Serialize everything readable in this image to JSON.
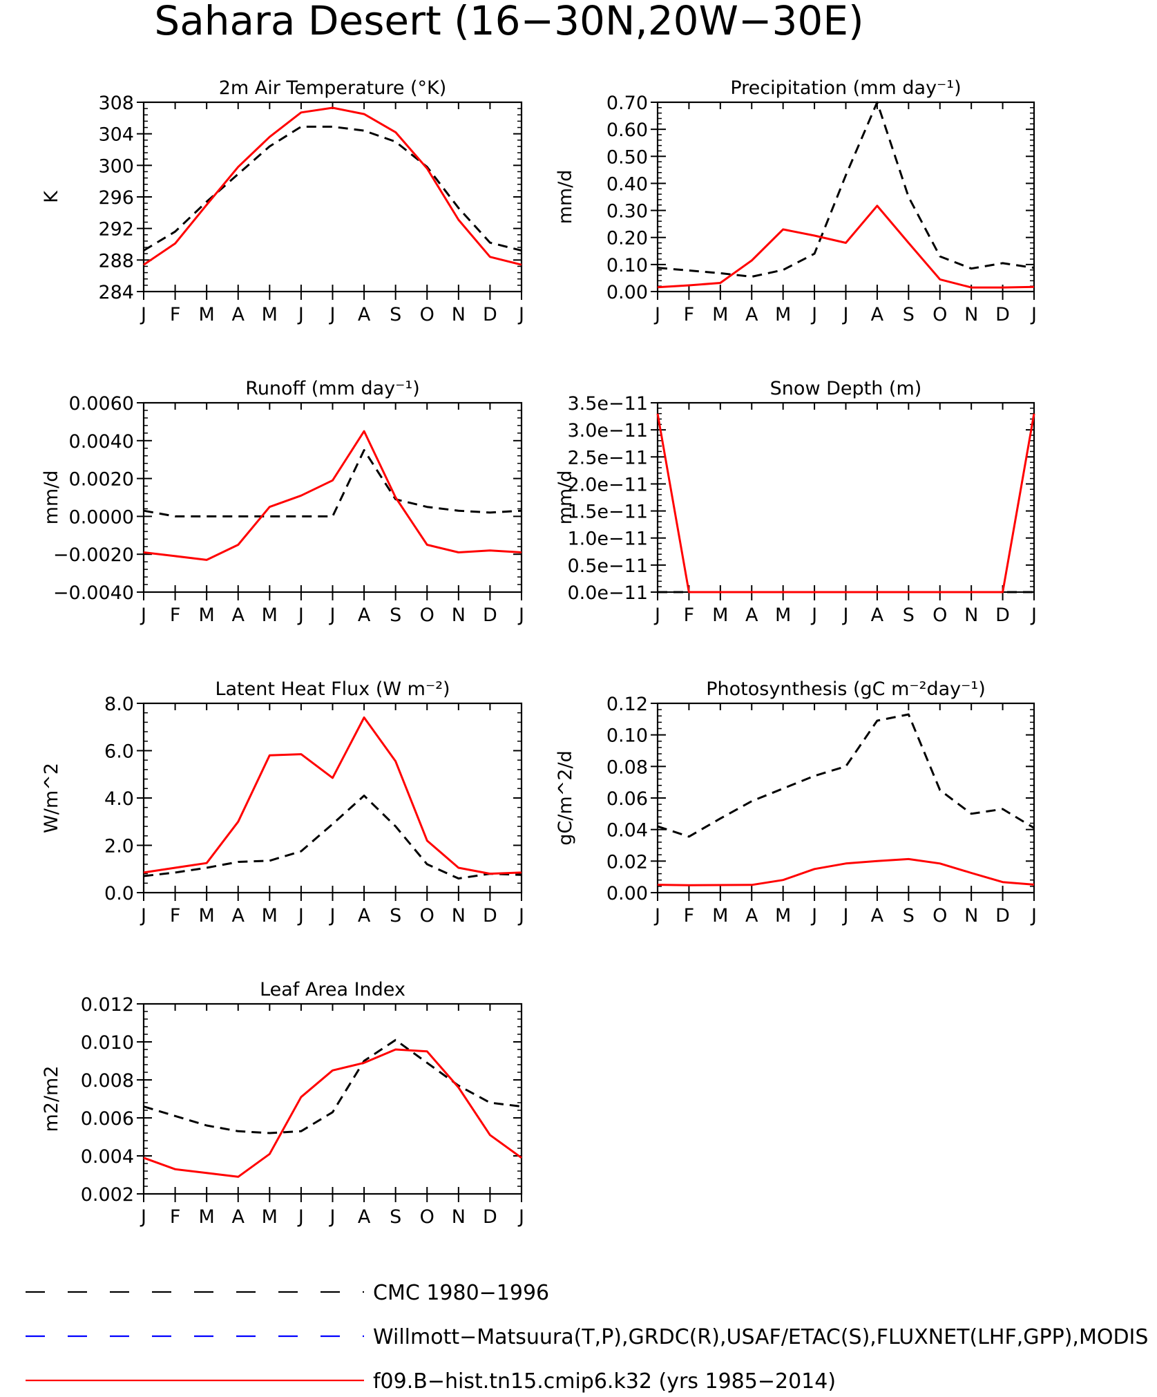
{
  "title": "Sahara Desert (16−30N,20W−30E)",
  "month_labels": [
    "J",
    "F",
    "M",
    "A",
    "M",
    "J",
    "J",
    "A",
    "S",
    "O",
    "N",
    "D",
    "J"
  ],
  "colors": {
    "obs": "#000000",
    "obs2": "#0000ff",
    "model": "#ff0000"
  },
  "legend": [
    {
      "label": "CMC 1980−1996",
      "color": "#000000",
      "style": "dashed"
    },
    {
      "label": "Willmott−Matsuura(T,P),GRDC(R),USAF/ETAC(S),FLUXNET(LHF,GPP),MODIS",
      "color": "#0000ff",
      "style": "dashed"
    },
    {
      "label": "f09.B−hist.tn15.cmip6.k32 (yrs 1985−2014)",
      "color": "#ff0000",
      "style": "solid"
    }
  ],
  "chart_data": [
    {
      "type": "line",
      "title": "2m Air Temperature (°K)",
      "ylabel": "K",
      "ylim": [
        284,
        308
      ],
      "yticks": [
        "284",
        "288",
        "292",
        "296",
        "300",
        "304",
        "308"
      ],
      "x": [
        "J",
        "F",
        "M",
        "A",
        "M",
        "J",
        "J",
        "A",
        "S",
        "O",
        "N",
        "D",
        "J"
      ],
      "series": [
        {
          "name": "CMC 1980−1996",
          "style": "dashed",
          "values": [
            289.2,
            291.6,
            295.4,
            298.9,
            302.4,
            304.9,
            304.9,
            304.4,
            303.0,
            299.8,
            294.6,
            290.2,
            289.2
          ]
        },
        {
          "name": "f09.B−hist.tn15.cmip6.k32 (yrs 1985−2014)",
          "style": "solid",
          "values": [
            287.4,
            290.1,
            295.0,
            299.8,
            303.6,
            306.7,
            307.3,
            306.5,
            304.2,
            299.6,
            293.1,
            288.4,
            287.4
          ]
        }
      ]
    },
    {
      "type": "line",
      "title": "Precipitation (mm day⁻¹)",
      "ylabel": "mm/d",
      "ylim": [
        0,
        0.7
      ],
      "yticks": [
        "0.00",
        "0.10",
        "0.20",
        "0.30",
        "0.40",
        "0.50",
        "0.60",
        "0.70"
      ],
      "x": [
        "J",
        "F",
        "M",
        "A",
        "M",
        "J",
        "J",
        "A",
        "S",
        "O",
        "N",
        "D",
        "J"
      ],
      "series": [
        {
          "name": "CMC 1980−1996",
          "style": "dashed",
          "values": [
            0.088,
            0.078,
            0.068,
            0.055,
            0.08,
            0.14,
            0.43,
            0.7,
            0.35,
            0.13,
            0.085,
            0.105,
            0.088
          ]
        },
        {
          "name": "f09.B−hist.tn15.cmip6.k32 (yrs 1985−2014)",
          "style": "solid",
          "values": [
            0.016,
            0.023,
            0.032,
            0.115,
            0.23,
            0.207,
            0.18,
            0.317,
            0.18,
            0.045,
            0.015,
            0.015,
            0.017
          ]
        }
      ]
    },
    {
      "type": "line",
      "title": "Runoff (mm day⁻¹)",
      "ylabel": "mm/d",
      "ylim": [
        -0.004,
        0.006
      ],
      "yticks": [
        "−0.0040",
        "−0.0020",
        "0.0000",
        "0.0020",
        "0.0040",
        "0.0060"
      ],
      "x": [
        "J",
        "F",
        "M",
        "A",
        "M",
        "J",
        "J",
        "A",
        "S",
        "O",
        "N",
        "D",
        "J"
      ],
      "series": [
        {
          "name": "CMC 1980−1996",
          "style": "dashed",
          "values": [
            0.0003,
            0.0,
            0.0,
            0.0,
            0.0,
            0.0,
            0.0,
            0.0035,
            0.0009,
            0.0005,
            0.0003,
            0.0002,
            0.0003
          ]
        },
        {
          "name": "f09.B−hist.tn15.cmip6.k32 (yrs 1985−2014)",
          "style": "solid",
          "values": [
            -0.0019,
            -0.0021,
            -0.0023,
            -0.0015,
            0.0005,
            0.0011,
            0.0019,
            0.0045,
            0.001,
            -0.0015,
            -0.0019,
            -0.0018,
            -0.0019
          ]
        }
      ]
    },
    {
      "type": "line",
      "title": "Snow Depth (m)",
      "ylabel": "mm/d",
      "ylim": [
        0,
        3.5e-11
      ],
      "yticks": [
        "0.0e−11",
        "0.5e−11",
        "1.0e−11",
        "1.5e−11",
        "2.0e−11",
        "2.5e−11",
        "3.0e−11",
        "3.5e−11"
      ],
      "x": [
        "J",
        "F",
        "M",
        "A",
        "M",
        "J",
        "J",
        "A",
        "S",
        "O",
        "N",
        "D",
        "J"
      ],
      "series": [
        {
          "name": "CMC 1980−1996",
          "style": "dashed",
          "values": [
            0,
            0,
            0,
            0,
            0,
            0,
            0,
            0,
            0,
            0,
            0,
            0,
            0
          ]
        },
        {
          "name": "f09.B−hist.tn15.cmip6.k32 (yrs 1985−2014)",
          "style": "solid",
          "values": [
            3.3e-11,
            0,
            0,
            0,
            0,
            0,
            0,
            0,
            0,
            0,
            0,
            0,
            3.3e-11
          ]
        }
      ]
    },
    {
      "type": "line",
      "title": "Latent Heat Flux (W m⁻²)",
      "ylabel": "W/m^2",
      "ylim": [
        0,
        8
      ],
      "yticks": [
        "0.0",
        "2.0",
        "4.0",
        "6.0",
        "8.0"
      ],
      "x": [
        "J",
        "F",
        "M",
        "A",
        "M",
        "J",
        "J",
        "A",
        "S",
        "O",
        "N",
        "D",
        "J"
      ],
      "series": [
        {
          "name": "CMC 1980−1996",
          "style": "dashed",
          "values": [
            0.7,
            0.85,
            1.05,
            1.3,
            1.35,
            1.75,
            2.9,
            4.1,
            2.8,
            1.2,
            0.6,
            0.8,
            0.75
          ]
        },
        {
          "name": "f09.B−hist.tn15.cmip6.k32 (yrs 1985−2014)",
          "style": "solid",
          "values": [
            0.85,
            1.05,
            1.25,
            3.0,
            5.8,
            5.85,
            4.85,
            7.4,
            5.55,
            2.2,
            1.05,
            0.8,
            0.85
          ]
        }
      ]
    },
    {
      "type": "line",
      "title": "Photosynthesis (gC m⁻²day⁻¹)",
      "ylabel": "gC/m^2/d",
      "ylim": [
        0,
        0.12
      ],
      "yticks": [
        "0.00",
        "0.02",
        "0.04",
        "0.06",
        "0.08",
        "0.10",
        "0.12"
      ],
      "x": [
        "J",
        "F",
        "M",
        "A",
        "M",
        "J",
        "J",
        "A",
        "S",
        "O",
        "N",
        "D",
        "J"
      ],
      "series": [
        {
          "name": "CMC 1980−1996",
          "style": "dashed",
          "values": [
            0.042,
            0.0355,
            0.047,
            0.058,
            0.066,
            0.074,
            0.08,
            0.109,
            0.113,
            0.065,
            0.05,
            0.053,
            0.041
          ]
        },
        {
          "name": "f09.B−hist.tn15.cmip6.k32 (yrs 1985−2014)",
          "style": "solid",
          "values": [
            0.005,
            0.0047,
            0.0048,
            0.0049,
            0.008,
            0.015,
            0.0185,
            0.02,
            0.0213,
            0.0185,
            0.0125,
            0.0067,
            0.0051
          ]
        }
      ]
    },
    {
      "type": "line",
      "title": "Leaf Area Index",
      "ylabel": "m2/m2",
      "ylim": [
        0.002,
        0.012
      ],
      "yticks": [
        "0.002",
        "0.004",
        "0.006",
        "0.008",
        "0.010",
        "0.012"
      ],
      "x": [
        "J",
        "F",
        "M",
        "A",
        "M",
        "J",
        "J",
        "A",
        "S",
        "O",
        "N",
        "D",
        "J"
      ],
      "series": [
        {
          "name": "CMC 1980−1996",
          "style": "dashed",
          "values": [
            0.0066,
            0.0061,
            0.0056,
            0.0053,
            0.0052,
            0.0053,
            0.0063,
            0.009,
            0.0101,
            0.0089,
            0.0077,
            0.0068,
            0.0066
          ]
        },
        {
          "name": "f09.B−hist.tn15.cmip6.k32 (yrs 1985−2014)",
          "style": "solid",
          "values": [
            0.0039,
            0.0033,
            0.0031,
            0.0029,
            0.0041,
            0.0071,
            0.0085,
            0.0089,
            0.0096,
            0.0095,
            0.0076,
            0.0051,
            0.0039
          ]
        }
      ]
    }
  ]
}
